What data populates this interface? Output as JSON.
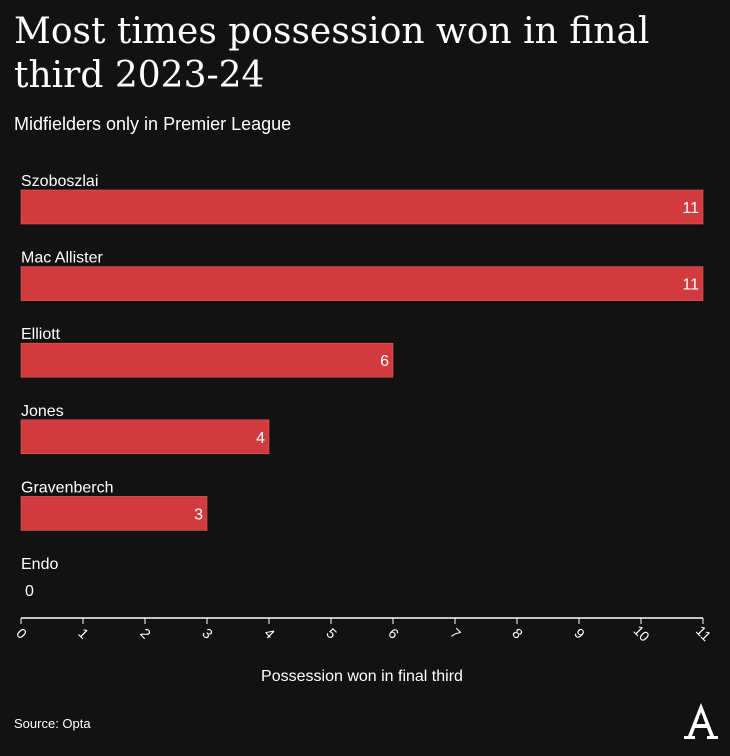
{
  "header": {
    "title": "Most times possession won in final third 2023-24",
    "subtitle": "Midfielders only in Premier League"
  },
  "footer": {
    "source": "Source: Opta",
    "logo": "The Athletic logo"
  },
  "colors": {
    "background": "#121212",
    "bar": "#d13b3f",
    "text": "#ffffff"
  },
  "chart_data": {
    "type": "bar",
    "orientation": "horizontal",
    "title": "Most times possession won in final third 2023-24",
    "subtitle": "Midfielders only in Premier League",
    "categories": [
      "Szoboszlai",
      "Mac Allister",
      "Elliott",
      "Jones",
      "Gravenberch",
      "Endo"
    ],
    "values": [
      11,
      11,
      6,
      4,
      3,
      0
    ],
    "xlabel": "Possession won in final third",
    "ylabel": "",
    "xlim": [
      0,
      11
    ],
    "xticks": [
      0,
      1,
      2,
      3,
      4,
      5,
      6,
      7,
      8,
      9,
      10,
      11
    ],
    "data_labels": true,
    "grid": false
  }
}
